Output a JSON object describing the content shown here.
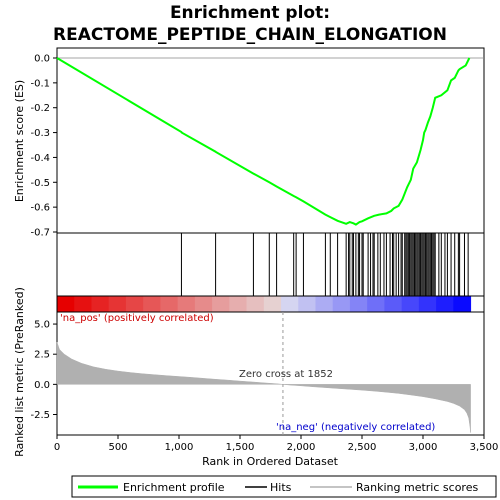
{
  "chart_data": {
    "type": "line",
    "title_line1": "Enrichment plot:",
    "title_line2": "REACTOME_PEPTIDE_CHAIN_ELONGATION",
    "xlabel": "Rank in Ordered Dataset",
    "ylabel_top": "Enrichment score (ES)",
    "ylabel_bottom": "Ranked list metric (PreRanked)",
    "xlim": [
      0,
      3500
    ],
    "es_ylim": [
      -0.7,
      0.0
    ],
    "metric_ylim": [
      -4.2,
      6.0
    ],
    "x_ticks": [
      0,
      500,
      1000,
      1500,
      2000,
      2500,
      3000,
      3500
    ],
    "x_tick_labels": [
      "0",
      "500",
      "1,000",
      "1,500",
      "2,000",
      "2,500",
      "3,000",
      "3,500"
    ],
    "es_ticks": [
      0.0,
      -0.1,
      -0.2,
      -0.3,
      -0.4,
      -0.5,
      -0.6,
      -0.7
    ],
    "es_tick_labels": [
      "0.0",
      "-0.1",
      "-0.2",
      "-0.3",
      "-0.4",
      "-0.5",
      "-0.6",
      "-0.7"
    ],
    "metric_ticks": [
      5.0,
      2.5,
      0.0,
      -2.5
    ],
    "metric_tick_labels": [
      "5.0",
      "2.5",
      "0.0",
      "-2.5"
    ],
    "total_genes": 3390,
    "zero_cross": 1852,
    "zero_cross_label": "Zero cross at 1852",
    "pos_label": "'na_pos' (positively correlated)",
    "neg_label": "'na_neg' (negatively correlated)",
    "enrichment_profile": {
      "name": "Enrichment profile",
      "color": "#00ff00",
      "x": [
        0,
        1020,
        1022,
        1300,
        1302,
        1610,
        1740,
        1800,
        1940,
        1960,
        2020,
        2200,
        2240,
        2300,
        2370,
        2400,
        2430,
        2450,
        2480,
        2500,
        2550,
        2600,
        2640,
        2700,
        2740,
        2760,
        2800,
        2830,
        2850,
        2870,
        2900,
        2920,
        2950,
        2980,
        3000,
        3010,
        3020,
        3040,
        3060,
        3080,
        3100,
        3150,
        3200,
        3230,
        3260,
        3290,
        3300,
        3350,
        3380
      ],
      "y": [
        0.0,
        -0.298,
        -0.3,
        -0.377,
        -0.378,
        -0.465,
        -0.5,
        -0.517,
        -0.555,
        -0.56,
        -0.577,
        -0.63,
        -0.64,
        -0.655,
        -0.667,
        -0.66,
        -0.665,
        -0.67,
        -0.66,
        -0.657,
        -0.645,
        -0.635,
        -0.63,
        -0.625,
        -0.615,
        -0.605,
        -0.595,
        -0.57,
        -0.545,
        -0.52,
        -0.49,
        -0.445,
        -0.42,
        -0.37,
        -0.33,
        -0.3,
        -0.29,
        -0.26,
        -0.235,
        -0.2,
        -0.16,
        -0.15,
        -0.13,
        -0.09,
        -0.08,
        -0.05,
        -0.045,
        -0.03,
        0.0
      ]
    },
    "hits": [
      1020,
      1300,
      1610,
      1740,
      1800,
      1940,
      1960,
      2020,
      2200,
      2240,
      2300,
      2370,
      2390,
      2400,
      2420,
      2430,
      2450,
      2470,
      2480,
      2500,
      2510,
      2550,
      2570,
      2590,
      2600,
      2630,
      2650,
      2680,
      2700,
      2730,
      2750,
      2760,
      2780,
      2800,
      2820,
      2830,
      2850,
      2860,
      2870,
      2880,
      2890,
      2900,
      2910,
      2920,
      2930,
      2940,
      2950,
      2960,
      2970,
      2980,
      2990,
      3000,
      3010,
      3020,
      3030,
      3040,
      3050,
      3060,
      3070,
      3080,
      3090,
      3100,
      3130,
      3150,
      3180,
      3200,
      3230,
      3260,
      3290,
      3300,
      3340,
      3370
    ],
    "metric_profile": {
      "name": "Ranking metric scores",
      "color": "#b0b0b0",
      "x": [
        0,
        20,
        60,
        120,
        200,
        300,
        400,
        500,
        600,
        700,
        800,
        900,
        1000,
        1100,
        1200,
        1300,
        1400,
        1500,
        1600,
        1700,
        1800,
        1852,
        1900,
        2000,
        2100,
        2200,
        2300,
        2400,
        2500,
        2600,
        2700,
        2800,
        2900,
        3000,
        3100,
        3200,
        3250,
        3300,
        3340,
        3360,
        3375,
        3385,
        3390
      ],
      "y": [
        3.5,
        2.9,
        2.5,
        2.1,
        1.75,
        1.45,
        1.25,
        1.1,
        0.98,
        0.88,
        0.8,
        0.72,
        0.65,
        0.58,
        0.5,
        0.42,
        0.35,
        0.27,
        0.2,
        0.12,
        0.05,
        0.0,
        -0.05,
        -0.12,
        -0.2,
        -0.27,
        -0.34,
        -0.41,
        -0.48,
        -0.56,
        -0.65,
        -0.75,
        -0.88,
        -1.02,
        -1.2,
        -1.42,
        -1.58,
        -1.8,
        -2.1,
        -2.4,
        -2.8,
        -3.5,
        -4.0
      ]
    },
    "legend": [
      {
        "name": "Enrichment profile",
        "color": "#00ff00",
        "kind": "line"
      },
      {
        "name": "Hits",
        "color": "#000000",
        "kind": "line"
      },
      {
        "name": "Ranking metric scores",
        "color": "#b0b0b0",
        "kind": "line"
      }
    ],
    "legend_position": "bottom",
    "grid": false
  }
}
